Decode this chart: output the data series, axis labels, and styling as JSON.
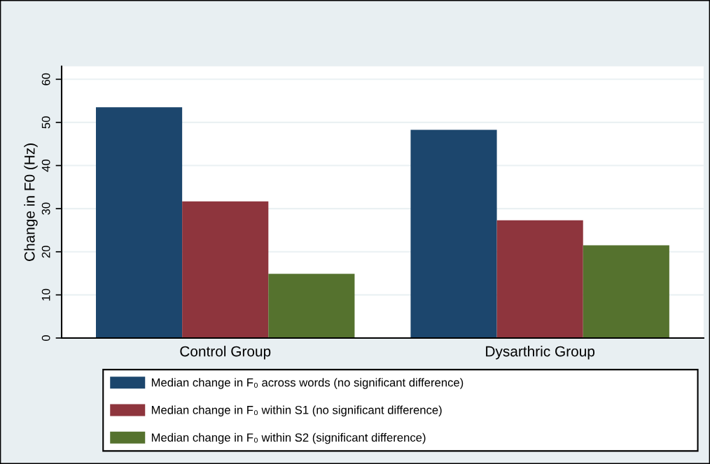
{
  "chart_data": {
    "type": "bar",
    "ylabel": "Change in F0 (Hz)",
    "categories": [
      "Control Group",
      "Dysarthric Group"
    ],
    "series": [
      {
        "name": "Median change in F₀ across words (no significant difference)",
        "color": "#1c466d",
        "values": [
          53.5,
          48.3
        ]
      },
      {
        "name": "Median change in F₀ within S1 (no significant difference)",
        "color": "#8e353d",
        "values": [
          31.7,
          27.3
        ]
      },
      {
        "name": "Median change in F₀ within S2 (significant difference)",
        "color": "#55722e",
        "values": [
          14.9,
          21.5
        ]
      }
    ],
    "ylim": [
      0,
      63
    ],
    "yticks": [
      0,
      10,
      20,
      30,
      40,
      50,
      60
    ],
    "grid": "y",
    "legend": "bottom"
  }
}
